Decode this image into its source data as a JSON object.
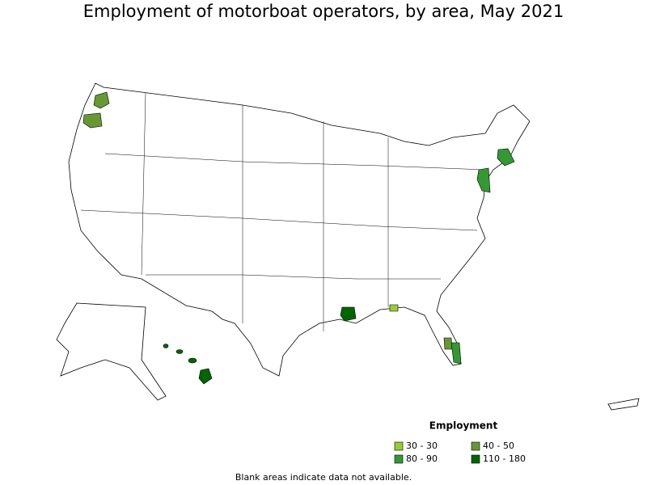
{
  "title": "Employment of motorboat operators, by area, May 2021",
  "legend": {
    "title": "Employment",
    "items": [
      {
        "label": "30 - 30",
        "color": "#99cc33"
      },
      {
        "label": "40 - 50",
        "color": "#669933"
      },
      {
        "label": "80 - 90",
        "color": "#339933"
      },
      {
        "label": "110 - 180",
        "color": "#006600"
      }
    ]
  },
  "note": "Blank areas indicate data not available."
}
